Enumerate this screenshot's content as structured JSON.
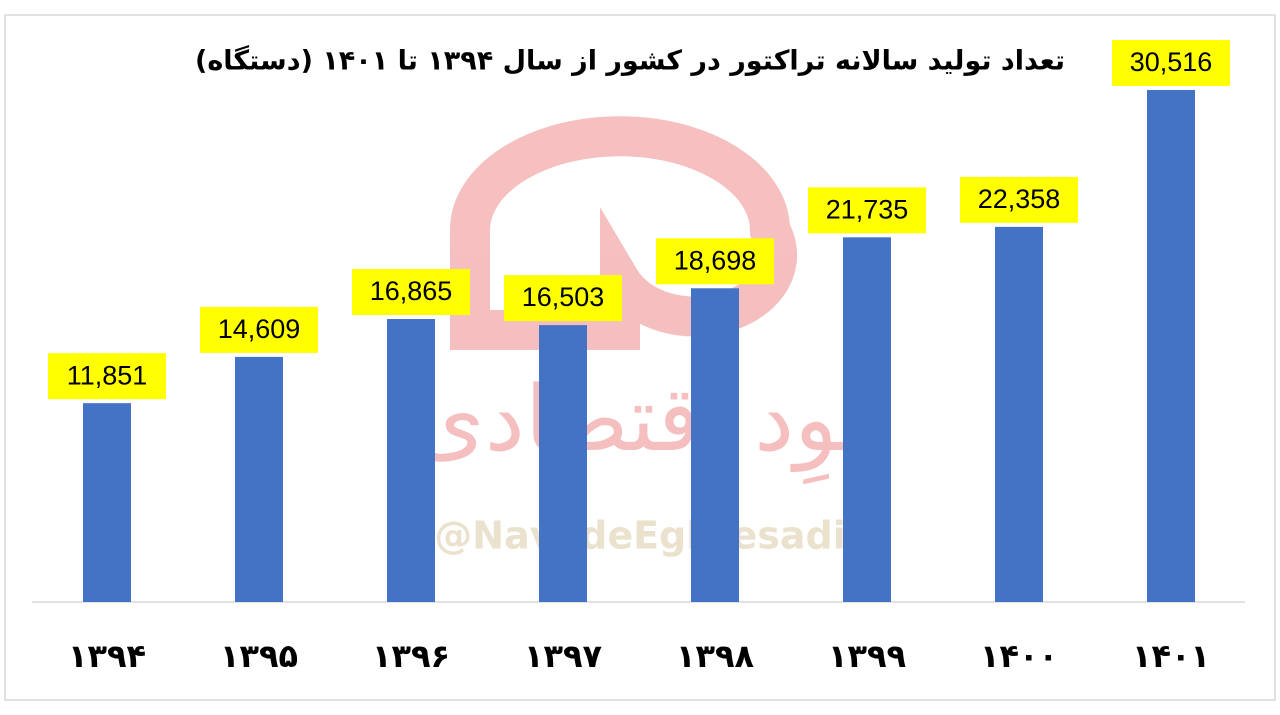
{
  "chart_data": {
    "type": "bar",
    "title": "تعداد تولید سالانه تراکتور در کشور از سال ۱۳۹۴ تا ۱۴۰۱   (دستگاه)",
    "categories": [
      "۱۳۹۴",
      "۱۳۹۵",
      "۱۳۹۶",
      "۱۳۹۷",
      "۱۳۹۸",
      "۱۳۹۹",
      "۱۴۰۰",
      "۱۴۰۱"
    ],
    "values": [
      11851,
      14609,
      16865,
      16503,
      18698,
      21735,
      22358,
      30516
    ],
    "value_labels": [
      "11,851",
      "14,609",
      "16,865",
      "16,503",
      "18,698",
      "21,735",
      "22,358",
      "30,516"
    ],
    "color": "#4472c4",
    "label_background": "#ffff00"
  },
  "watermark": {
    "name": "نوِد اقتصادی",
    "handle": "@NavadeEghtesadi"
  }
}
